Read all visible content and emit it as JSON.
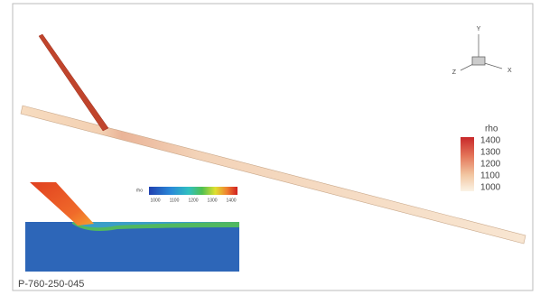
{
  "axes": {
    "x": "X",
    "y": "Y",
    "z": "Z"
  },
  "legend": {
    "title": "rho",
    "ticks": [
      "1400",
      "1300",
      "1200",
      "1100",
      "1000"
    ]
  },
  "inset_legend": {
    "title": "rho",
    "ticks": [
      "1000",
      "1100",
      "1200",
      "1300",
      "1400"
    ]
  },
  "figure_id": "P-760-250-045"
}
